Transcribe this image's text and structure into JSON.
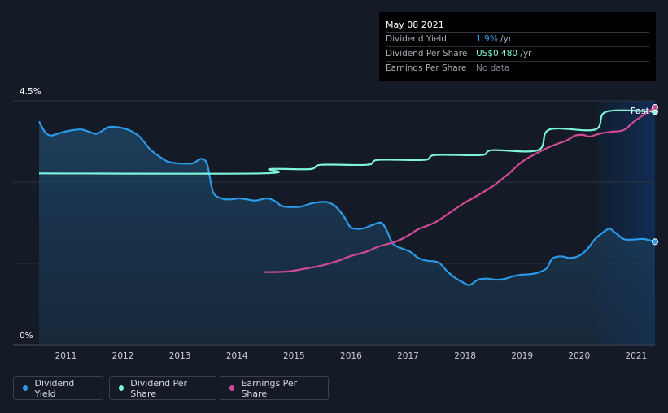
{
  "tooltip": {
    "date": "May 08 2021",
    "rows": [
      {
        "label": "Dividend Yield",
        "value": "1.9%",
        "unit": " /yr",
        "color": "#2b9ae8"
      },
      {
        "label": "Dividend Per Share",
        "value": "US$0.480",
        "unit": " /yr",
        "color": "#7ef5d9"
      },
      {
        "label": "Earnings Per Share",
        "value": "No data",
        "unit": "",
        "color": "#7b8088"
      }
    ]
  },
  "past_label": "Past",
  "legend": [
    {
      "label": "Dividend Yield",
      "color": "#2b9ae8"
    },
    {
      "label": "Dividend Per Share",
      "color": "#7ef5d9"
    },
    {
      "label": "Earnings Per Share",
      "color": "#d14a96"
    }
  ],
  "chart_data": {
    "type": "line",
    "y_top_label": "4.5%",
    "y_bottom_label": "0%",
    "x_ticks": [
      "2011",
      "2012",
      "2013",
      "2014",
      "2015",
      "2016",
      "2017",
      "2018",
      "2019",
      "2020",
      "2021"
    ],
    "x_range": [
      2010.55,
      2021.35
    ],
    "ylim": [
      0,
      4.5
    ],
    "past_region_start": 2020.35,
    "series": [
      {
        "name": "Dividend Yield",
        "color": "#2b9ae8",
        "fill": true,
        "points": [
          [
            2010.55,
            4.12
          ],
          [
            2010.65,
            3.93
          ],
          [
            2010.75,
            3.86
          ],
          [
            2010.9,
            3.9
          ],
          [
            2011.0,
            3.93
          ],
          [
            2011.15,
            3.96
          ],
          [
            2011.3,
            3.97
          ],
          [
            2011.45,
            3.92
          ],
          [
            2011.55,
            3.89
          ],
          [
            2011.65,
            3.94
          ],
          [
            2011.75,
            4.01
          ],
          [
            2011.85,
            4.02
          ],
          [
            2012.0,
            4.0
          ],
          [
            2012.15,
            3.95
          ],
          [
            2012.3,
            3.85
          ],
          [
            2012.4,
            3.73
          ],
          [
            2012.5,
            3.6
          ],
          [
            2012.65,
            3.48
          ],
          [
            2012.8,
            3.38
          ],
          [
            2012.95,
            3.35
          ],
          [
            2013.1,
            3.34
          ],
          [
            2013.25,
            3.35
          ],
          [
            2013.4,
            3.43
          ],
          [
            2013.5,
            3.32
          ],
          [
            2013.6,
            2.82
          ],
          [
            2013.75,
            2.7
          ],
          [
            2013.9,
            2.68
          ],
          [
            2014.05,
            2.7
          ],
          [
            2014.2,
            2.68
          ],
          [
            2014.35,
            2.66
          ],
          [
            2014.55,
            2.7
          ],
          [
            2014.7,
            2.64
          ],
          [
            2014.8,
            2.56
          ],
          [
            2014.95,
            2.54
          ],
          [
            2015.15,
            2.55
          ],
          [
            2015.3,
            2.6
          ],
          [
            2015.45,
            2.63
          ],
          [
            2015.6,
            2.63
          ],
          [
            2015.75,
            2.55
          ],
          [
            2015.9,
            2.36
          ],
          [
            2016.0,
            2.18
          ],
          [
            2016.1,
            2.14
          ],
          [
            2016.25,
            2.15
          ],
          [
            2016.4,
            2.21
          ],
          [
            2016.55,
            2.25
          ],
          [
            2016.65,
            2.1
          ],
          [
            2016.75,
            1.87
          ],
          [
            2016.9,
            1.78
          ],
          [
            2017.05,
            1.72
          ],
          [
            2017.2,
            1.6
          ],
          [
            2017.35,
            1.55
          ],
          [
            2017.55,
            1.52
          ],
          [
            2017.7,
            1.36
          ],
          [
            2017.85,
            1.23
          ],
          [
            2018.0,
            1.14
          ],
          [
            2018.1,
            1.1
          ],
          [
            2018.25,
            1.2
          ],
          [
            2018.4,
            1.22
          ],
          [
            2018.55,
            1.2
          ],
          [
            2018.7,
            1.21
          ],
          [
            2018.85,
            1.26
          ],
          [
            2019.0,
            1.29
          ],
          [
            2019.15,
            1.3
          ],
          [
            2019.3,
            1.33
          ],
          [
            2019.45,
            1.41
          ],
          [
            2019.55,
            1.59
          ],
          [
            2019.7,
            1.63
          ],
          [
            2019.85,
            1.6
          ],
          [
            2020.0,
            1.63
          ],
          [
            2020.15,
            1.75
          ],
          [
            2020.3,
            1.95
          ],
          [
            2020.45,
            2.08
          ],
          [
            2020.55,
            2.14
          ],
          [
            2020.65,
            2.07
          ],
          [
            2020.8,
            1.95
          ],
          [
            2020.95,
            1.94
          ],
          [
            2021.15,
            1.95
          ],
          [
            2021.35,
            1.9
          ]
        ]
      },
      {
        "name": "Dividend Per Share",
        "color": "#7ef5d9",
        "fill": false,
        "points": [
          [
            2010.55,
            3.16
          ],
          [
            2014.45,
            3.16
          ],
          [
            2014.6,
            3.24
          ],
          [
            2015.3,
            3.24
          ],
          [
            2015.5,
            3.32
          ],
          [
            2016.3,
            3.32
          ],
          [
            2016.5,
            3.41
          ],
          [
            2017.3,
            3.41
          ],
          [
            2017.5,
            3.5
          ],
          [
            2018.3,
            3.5
          ],
          [
            2018.5,
            3.59
          ],
          [
            2019.3,
            3.59
          ],
          [
            2019.5,
            3.97
          ],
          [
            2020.3,
            3.97
          ],
          [
            2020.5,
            4.3
          ],
          [
            2021.35,
            4.3
          ]
        ]
      },
      {
        "name": "Earnings Per Share",
        "color": "#d14a96",
        "fill": false,
        "points": [
          [
            2014.5,
            1.34
          ],
          [
            2014.9,
            1.35
          ],
          [
            2015.2,
            1.4
          ],
          [
            2015.5,
            1.46
          ],
          [
            2015.8,
            1.55
          ],
          [
            2016.0,
            1.63
          ],
          [
            2016.3,
            1.72
          ],
          [
            2016.5,
            1.81
          ],
          [
            2016.8,
            1.9
          ],
          [
            2017.0,
            2.0
          ],
          [
            2017.2,
            2.13
          ],
          [
            2017.5,
            2.26
          ],
          [
            2017.8,
            2.47
          ],
          [
            2018.0,
            2.61
          ],
          [
            2018.2,
            2.73
          ],
          [
            2018.5,
            2.92
          ],
          [
            2018.8,
            3.17
          ],
          [
            2019.0,
            3.36
          ],
          [
            2019.2,
            3.49
          ],
          [
            2019.5,
            3.65
          ],
          [
            2019.8,
            3.77
          ],
          [
            2019.95,
            3.86
          ],
          [
            2020.1,
            3.87
          ],
          [
            2020.2,
            3.84
          ],
          [
            2020.4,
            3.9
          ],
          [
            2020.6,
            3.93
          ],
          [
            2020.8,
            3.96
          ],
          [
            2021.0,
            4.13
          ],
          [
            2021.35,
            4.38
          ]
        ]
      }
    ]
  }
}
